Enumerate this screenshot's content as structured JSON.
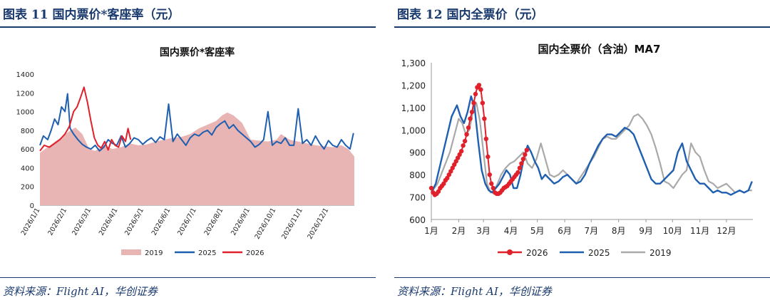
{
  "panels": [
    {
      "figure_title": "图表 11    国内票价*客座率（元）",
      "source": "资料来源：Flight AI，华创证券"
    },
    {
      "figure_title": "图表 12    国内全票价（元）",
      "source": "资料来源：Flight AI，华创证券"
    }
  ],
  "colors": {
    "c2019_fill": "#e8b4b4",
    "c2019_line": "#a9a9a9",
    "c2025": "#1f5fb0",
    "c2026": "#e0202a"
  },
  "chart_data": [
    {
      "type": "area",
      "title": "国内票价*客座率",
      "xlabel": "",
      "ylabel": "",
      "ylim": [
        0,
        1400
      ],
      "yticks": [
        "0",
        "200",
        "400",
        "600",
        "800",
        "1000",
        "1200",
        "1400"
      ],
      "xticks": [
        "2026/1/1",
        "2026/2/1",
        "2026/3/1",
        "2026/4/1",
        "2026/5/1",
        "2026/6/1",
        "2026/7/1",
        "2026/8/1",
        "2026/9/1",
        "2026/10/1",
        "2026/11/1",
        "2026/12/1"
      ],
      "x_unit": "day of year (1-365)",
      "legend": [
        "2019",
        "2025",
        "2026"
      ],
      "legend_position": "bottom",
      "series": [
        {
          "name": "2019",
          "style": "area",
          "x": [
            1,
            10,
            20,
            28,
            35,
            42,
            50,
            58,
            65,
            75,
            85,
            95,
            105,
            115,
            125,
            135,
            145,
            155,
            165,
            175,
            185,
            195,
            205,
            212,
            218,
            225,
            235,
            245,
            255,
            265,
            275,
            280,
            290,
            300,
            310,
            320,
            330,
            340,
            350,
            358,
            365
          ],
          "values": [
            560,
            620,
            690,
            740,
            790,
            830,
            760,
            600,
            580,
            640,
            600,
            620,
            660,
            640,
            650,
            680,
            700,
            720,
            730,
            760,
            820,
            860,
            900,
            960,
            990,
            960,
            880,
            700,
            690,
            680,
            700,
            760,
            700,
            680,
            660,
            640,
            630,
            620,
            640,
            600,
            520
          ]
        },
        {
          "name": "2025",
          "style": "line",
          "x": [
            1,
            5,
            10,
            14,
            18,
            22,
            26,
            30,
            33,
            36,
            40,
            45,
            50,
            55,
            60,
            65,
            70,
            75,
            80,
            85,
            90,
            95,
            100,
            105,
            110,
            115,
            120,
            125,
            130,
            135,
            140,
            145,
            150,
            155,
            160,
            165,
            170,
            175,
            180,
            185,
            190,
            195,
            200,
            205,
            210,
            215,
            220,
            225,
            230,
            235,
            240,
            245,
            250,
            255,
            260,
            265,
            270,
            275,
            280,
            285,
            290,
            295,
            300,
            305,
            310,
            315,
            320,
            325,
            330,
            335,
            340,
            345,
            350,
            355,
            360,
            364
          ],
          "values": [
            640,
            740,
            700,
            800,
            920,
            860,
            1050,
            1000,
            1190,
            820,
            760,
            700,
            650,
            620,
            600,
            640,
            580,
            620,
            700,
            660,
            640,
            740,
            620,
            660,
            720,
            700,
            650,
            690,
            720,
            670,
            730,
            700,
            1080,
            680,
            760,
            700,
            640,
            720,
            760,
            740,
            780,
            800,
            750,
            830,
            870,
            900,
            820,
            860,
            800,
            760,
            720,
            680,
            620,
            650,
            700,
            1000,
            640,
            680,
            660,
            720,
            640,
            640,
            1030,
            660,
            700,
            640,
            740,
            660,
            600,
            690,
            640,
            620,
            700,
            640,
            600,
            770
          ]
        },
        {
          "name": "2026",
          "style": "line",
          "x": [
            1,
            6,
            12,
            18,
            24,
            30,
            35,
            40,
            44,
            48,
            52,
            56,
            60,
            64,
            68,
            72,
            76,
            80,
            84,
            88,
            92,
            96,
            100,
            103,
            106
          ],
          "values": [
            580,
            640,
            620,
            660,
            700,
            760,
            840,
            1000,
            1050,
            1150,
            1260,
            1100,
            900,
            720,
            640,
            610,
            680,
            590,
            700,
            640,
            620,
            740,
            680,
            820,
            700
          ]
        }
      ]
    },
    {
      "type": "line",
      "title": "国内全票价（含油）MA7",
      "xlabel": "",
      "ylabel": "",
      "ylim": [
        600,
        1300
      ],
      "yticks": [
        "600",
        "700",
        "800",
        "900",
        "1,000",
        "1,100",
        "1,200",
        "1,300"
      ],
      "xticks": [
        "1月",
        "2月",
        "3月",
        "4月",
        "5月",
        "6月",
        "7月",
        "8月",
        "9月",
        "10月",
        "11月",
        "12月"
      ],
      "x_unit": "day of year (1-365)",
      "legend": [
        "2026",
        "2025",
        "2019"
      ],
      "legend_position": "bottom",
      "series": [
        {
          "name": "2019",
          "style": "line",
          "x": [
            1,
            8,
            15,
            22,
            28,
            32,
            36,
            40,
            44,
            48,
            52,
            56,
            60,
            64,
            68,
            72,
            76,
            80,
            85,
            90,
            95,
            100,
            105,
            110,
            115,
            120,
            125,
            130,
            135,
            140,
            145,
            150,
            155,
            160,
            165,
            170,
            175,
            180,
            185,
            190,
            195,
            200,
            205,
            210,
            215,
            220,
            225,
            230,
            235,
            240,
            245,
            250,
            255,
            260,
            265,
            270,
            275,
            280,
            285,
            290,
            295,
            300,
            305,
            310,
            315,
            320,
            325,
            330,
            335,
            340,
            345,
            350,
            355,
            360,
            364
          ],
          "values": [
            720,
            760,
            830,
            900,
            990,
            1050,
            1030,
            980,
            1000,
            1080,
            1120,
            1040,
            900,
            760,
            720,
            730,
            760,
            800,
            830,
            850,
            860,
            880,
            900,
            850,
            830,
            870,
            940,
            870,
            800,
            790,
            800,
            820,
            800,
            780,
            760,
            790,
            820,
            850,
            880,
            920,
            960,
            970,
            960,
            960,
            980,
            1000,
            1020,
            1060,
            1070,
            1050,
            1020,
            980,
            920,
            850,
            770,
            760,
            740,
            770,
            800,
            820,
            940,
            900,
            880,
            820,
            770,
            760,
            740,
            750,
            760,
            740,
            720,
            730,
            720,
            730,
            730
          ]
        },
        {
          "name": "2025",
          "style": "line",
          "x": [
            1,
            6,
            12,
            18,
            24,
            30,
            34,
            38,
            42,
            46,
            50,
            54,
            58,
            62,
            66,
            70,
            74,
            78,
            82,
            86,
            90,
            94,
            98,
            102,
            106,
            110,
            114,
            118,
            122,
            126,
            130,
            135,
            140,
            145,
            150,
            155,
            160,
            165,
            170,
            175,
            180,
            185,
            190,
            195,
            200,
            205,
            210,
            215,
            220,
            225,
            230,
            235,
            240,
            245,
            250,
            255,
            260,
            265,
            270,
            275,
            280,
            285,
            290,
            295,
            300,
            305,
            310,
            315,
            320,
            325,
            330,
            335,
            340,
            345,
            350,
            355,
            360,
            364
          ],
          "values": [
            720,
            760,
            860,
            960,
            1060,
            1110,
            1060,
            1030,
            1080,
            1150,
            1100,
            950,
            820,
            760,
            730,
            720,
            740,
            760,
            790,
            820,
            800,
            740,
            740,
            800,
            880,
            930,
            900,
            860,
            830,
            780,
            800,
            780,
            760,
            770,
            790,
            800,
            780,
            760,
            770,
            800,
            850,
            890,
            930,
            960,
            980,
            980,
            970,
            990,
            1010,
            1000,
            980,
            930,
            880,
            830,
            780,
            760,
            760,
            780,
            800,
            820,
            900,
            940,
            860,
            820,
            780,
            760,
            760,
            740,
            720,
            730,
            720,
            720,
            710,
            720,
            730,
            720,
            730,
            770
          ]
        },
        {
          "name": "2026",
          "style": "line-markers",
          "x": [
            1,
            3,
            5,
            7,
            9,
            11,
            13,
            15,
            17,
            19,
            21,
            23,
            25,
            27,
            29,
            31,
            33,
            35,
            37,
            39,
            41,
            43,
            45,
            47,
            49,
            51,
            53,
            55,
            57,
            59,
            61,
            63,
            65,
            67,
            69,
            71,
            73,
            75,
            77,
            79,
            81,
            83,
            85,
            87,
            89,
            91,
            93,
            95,
            97,
            99,
            101,
            103,
            105,
            107,
            109
          ],
          "values": [
            740,
            720,
            710,
            715,
            725,
            740,
            750,
            760,
            775,
            785,
            800,
            815,
            830,
            845,
            860,
            875,
            890,
            905,
            930,
            950,
            980,
            1010,
            1050,
            1080,
            1120,
            1160,
            1190,
            1200,
            1180,
            1120,
            1050,
            960,
            880,
            800,
            760,
            740,
            720,
            715,
            715,
            720,
            730,
            740,
            745,
            750,
            760,
            770,
            780,
            790,
            800,
            810,
            830,
            850,
            870,
            890,
            910
          ]
        }
      ]
    }
  ]
}
